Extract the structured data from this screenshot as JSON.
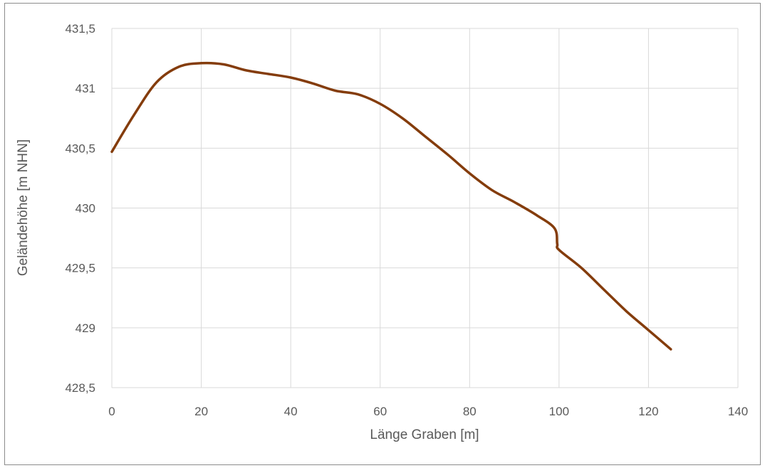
{
  "chart_data": {
    "type": "line",
    "title": "",
    "xlabel": "Länge Graben [m]",
    "ylabel": "Geländehöhe [m NHN]",
    "xlim": [
      0,
      140
    ],
    "ylim": [
      428.5,
      431.5
    ],
    "x_ticks": [
      0,
      20,
      40,
      60,
      80,
      100,
      120,
      140
    ],
    "y_ticks": [
      428.5,
      429,
      429.5,
      430,
      430.5,
      431,
      431.5
    ],
    "x_tick_labels": [
      "0",
      "20",
      "40",
      "60",
      "80",
      "100",
      "120",
      "140"
    ],
    "y_tick_labels": [
      "428,5",
      "429",
      "429,5",
      "430",
      "430,5",
      "431",
      "431,5"
    ],
    "grid": true,
    "legend": "none",
    "series": [
      {
        "color": "#843C0C",
        "x": [
          0,
          5,
          10,
          15,
          20,
          25,
          30,
          35,
          40,
          45,
          50,
          55,
          60,
          65,
          70,
          75,
          80,
          85,
          90,
          95,
          99,
          99.6,
          100,
          105,
          110,
          115,
          120,
          125
        ],
        "y": [
          430.47,
          430.78,
          431.05,
          431.18,
          431.21,
          431.2,
          431.15,
          431.12,
          431.09,
          431.04,
          430.98,
          430.95,
          430.87,
          430.75,
          430.6,
          430.45,
          430.29,
          430.15,
          430.05,
          429.94,
          429.83,
          429.7,
          429.65,
          429.5,
          429.32,
          429.14,
          428.98,
          428.82
        ]
      }
    ]
  }
}
